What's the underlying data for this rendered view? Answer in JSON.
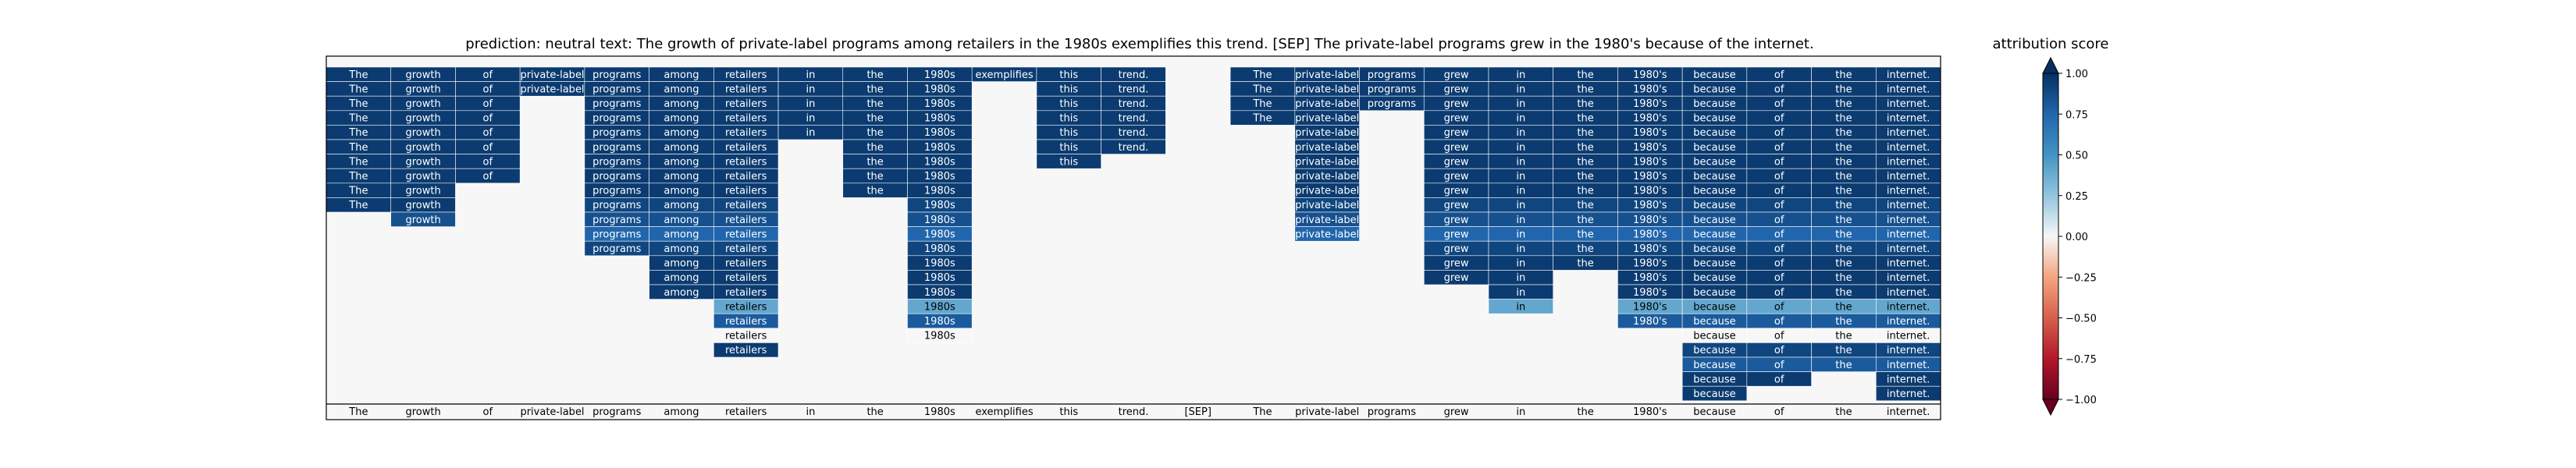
{
  "chart_data": {
    "type": "heatmap",
    "title": "prediction:  neutral     text:  The growth of private-label programs among retailers in the 1980s exemplifies this trend. [SEP] The private-label programs grew in the 1980's because of the internet.",
    "tokens": [
      "The",
      "growth",
      "of",
      "private-label",
      "programs",
      "among",
      "retailers",
      "in",
      "the",
      "1980s",
      "exemplifies",
      "this",
      "trend.",
      "[SEP]",
      "The",
      "private-label",
      "programs",
      "grew",
      "in",
      "the",
      "1980's",
      "because",
      "of",
      "the",
      "internet."
    ],
    "cells": [
      [
        0.95,
        0.95,
        0.95,
        0.95,
        0.95,
        0.95,
        0.95,
        0.95,
        0.95,
        0.95,
        0.95,
        0.95,
        0.95,
        null,
        0.95,
        0.95,
        0.95,
        0.95,
        0.95,
        0.95,
        0.95,
        0.95,
        0.95,
        0.95,
        0.95
      ],
      [
        0.95,
        0.95,
        0.95,
        0.95,
        0.95,
        0.95,
        0.95,
        0.95,
        0.95,
        0.95,
        null,
        0.95,
        0.95,
        null,
        0.95,
        0.95,
        0.95,
        0.95,
        0.95,
        0.95,
        0.95,
        0.95,
        0.95,
        0.95,
        0.95
      ],
      [
        0.95,
        0.95,
        0.95,
        null,
        0.95,
        0.95,
        0.95,
        0.95,
        0.95,
        0.95,
        null,
        0.95,
        0.95,
        null,
        0.95,
        0.95,
        0.95,
        0.95,
        0.95,
        0.95,
        0.95,
        0.95,
        0.95,
        0.95,
        0.95
      ],
      [
        0.95,
        0.95,
        0.95,
        null,
        0.95,
        0.95,
        0.95,
        0.95,
        0.95,
        0.95,
        null,
        0.95,
        0.95,
        null,
        0.95,
        0.95,
        null,
        0.95,
        0.95,
        0.95,
        0.95,
        0.95,
        0.95,
        0.95,
        0.95
      ],
      [
        0.95,
        0.95,
        0.95,
        null,
        0.95,
        0.95,
        0.95,
        0.95,
        0.95,
        0.95,
        null,
        0.95,
        0.95,
        null,
        null,
        0.95,
        null,
        0.95,
        0.95,
        0.95,
        0.95,
        0.95,
        0.95,
        0.95,
        0.95
      ],
      [
        0.95,
        0.95,
        0.95,
        null,
        0.95,
        0.95,
        0.95,
        null,
        0.95,
        0.95,
        null,
        0.95,
        0.95,
        null,
        null,
        0.95,
        null,
        0.95,
        0.95,
        0.95,
        0.95,
        0.95,
        0.95,
        0.95,
        0.95
      ],
      [
        0.95,
        0.95,
        0.95,
        null,
        0.95,
        0.95,
        0.95,
        null,
        0.95,
        0.95,
        null,
        0.95,
        null,
        null,
        null,
        0.95,
        null,
        0.95,
        0.95,
        0.95,
        0.95,
        0.95,
        0.95,
        0.95,
        0.95
      ],
      [
        0.95,
        0.95,
        0.95,
        null,
        0.95,
        0.95,
        0.95,
        null,
        0.95,
        0.95,
        null,
        null,
        null,
        null,
        null,
        0.95,
        null,
        0.95,
        0.95,
        0.95,
        0.95,
        0.95,
        0.95,
        0.95,
        0.95
      ],
      [
        0.95,
        0.95,
        null,
        null,
        0.95,
        0.95,
        0.95,
        null,
        0.95,
        0.95,
        null,
        null,
        null,
        null,
        null,
        0.95,
        null,
        0.95,
        0.95,
        0.95,
        0.95,
        0.95,
        0.95,
        0.95,
        0.95
      ],
      [
        0.95,
        0.95,
        null,
        null,
        0.9,
        0.9,
        0.9,
        null,
        null,
        0.9,
        null,
        null,
        null,
        null,
        null,
        0.9,
        null,
        0.9,
        0.9,
        0.9,
        0.9,
        0.9,
        0.9,
        0.9,
        0.9
      ],
      [
        null,
        0.85,
        null,
        null,
        0.85,
        0.85,
        0.85,
        null,
        null,
        0.85,
        null,
        null,
        null,
        null,
        null,
        0.85,
        null,
        0.85,
        0.85,
        0.85,
        0.85,
        0.85,
        0.85,
        0.85,
        0.85
      ],
      [
        null,
        null,
        null,
        null,
        0.75,
        0.75,
        0.75,
        null,
        null,
        0.75,
        null,
        null,
        null,
        null,
        null,
        0.75,
        null,
        0.75,
        0.75,
        0.75,
        0.75,
        0.75,
        0.75,
        0.75,
        0.75
      ],
      [
        null,
        null,
        null,
        null,
        0.9,
        0.9,
        0.9,
        null,
        null,
        0.9,
        null,
        null,
        null,
        null,
        null,
        null,
        null,
        0.9,
        0.9,
        0.9,
        0.9,
        0.9,
        0.9,
        0.9,
        0.9
      ],
      [
        null,
        null,
        null,
        null,
        null,
        0.95,
        0.95,
        null,
        null,
        0.95,
        null,
        null,
        null,
        null,
        null,
        null,
        null,
        0.95,
        0.95,
        0.95,
        0.95,
        0.95,
        0.95,
        0.95,
        0.95
      ],
      [
        null,
        null,
        null,
        null,
        null,
        0.95,
        0.95,
        null,
        null,
        0.95,
        null,
        null,
        null,
        null,
        null,
        null,
        null,
        0.95,
        0.95,
        null,
        0.95,
        0.95,
        0.95,
        0.95,
        0.95
      ],
      [
        null,
        null,
        null,
        null,
        null,
        0.95,
        0.95,
        null,
        null,
        0.95,
        null,
        null,
        null,
        null,
        null,
        null,
        null,
        null,
        0.95,
        null,
        0.95,
        0.95,
        0.95,
        0.95,
        0.95
      ],
      [
        null,
        null,
        null,
        null,
        null,
        null,
        0.4,
        null,
        null,
        0.4,
        null,
        null,
        null,
        null,
        null,
        null,
        null,
        null,
        0.4,
        null,
        0.4,
        0.4,
        0.4,
        0.4,
        0.4
      ],
      [
        null,
        null,
        null,
        null,
        null,
        null,
        0.8,
        null,
        null,
        0.8,
        null,
        null,
        null,
        null,
        null,
        null,
        null,
        null,
        null,
        null,
        0.8,
        0.8,
        0.8,
        0.8,
        0.8
      ],
      [
        null,
        null,
        null,
        null,
        null,
        null,
        0.0,
        null,
        null,
        0.0,
        null,
        null,
        null,
        null,
        null,
        null,
        null,
        null,
        null,
        null,
        null,
        0.0,
        0.0,
        0.0,
        0.0
      ],
      [
        null,
        null,
        null,
        null,
        null,
        null,
        0.95,
        null,
        null,
        null,
        null,
        null,
        null,
        null,
        null,
        null,
        null,
        null,
        null,
        null,
        null,
        0.9,
        0.9,
        0.9,
        0.9
      ],
      [
        null,
        null,
        null,
        null,
        null,
        null,
        null,
        null,
        null,
        null,
        null,
        null,
        null,
        null,
        null,
        null,
        null,
        null,
        null,
        null,
        null,
        0.8,
        0.8,
        0.8,
        0.8
      ],
      [
        null,
        null,
        null,
        null,
        null,
        null,
        null,
        null,
        null,
        null,
        null,
        null,
        null,
        null,
        null,
        null,
        null,
        null,
        null,
        null,
        null,
        0.95,
        0.95,
        null,
        0.95
      ],
      [
        null,
        null,
        null,
        null,
        null,
        null,
        null,
        null,
        null,
        null,
        null,
        null,
        null,
        null,
        null,
        null,
        null,
        null,
        null,
        null,
        null,
        0.95,
        null,
        null,
        0.95
      ]
    ],
    "colorbar": {
      "label": "attribution score",
      "range": [
        -1.0,
        1.0
      ],
      "ticks": [
        1.0,
        0.75,
        0.5,
        0.25,
        0.0,
        -0.25,
        -0.5,
        -0.75,
        -1.0
      ],
      "tick_labels": [
        "1.00",
        "0.75",
        "0.50",
        "0.25",
        "0.00",
        "−0.25",
        "−0.50",
        "−0.75",
        "−1.00"
      ]
    },
    "grid": false
  }
}
